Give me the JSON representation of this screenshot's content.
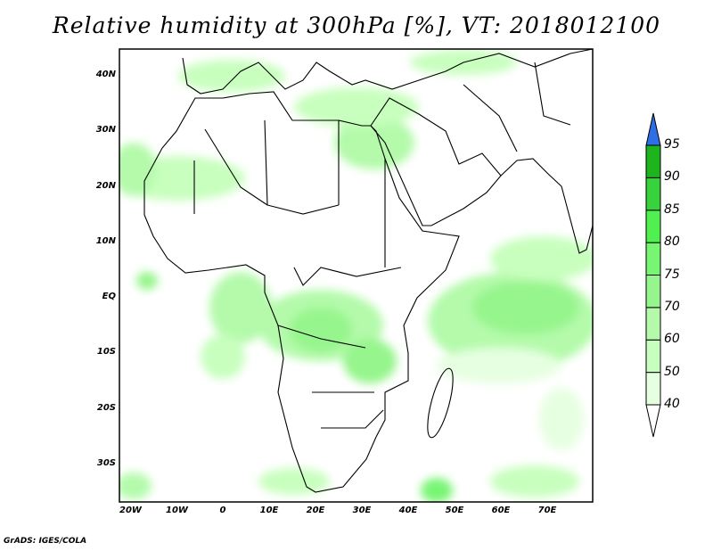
{
  "title": "Relative humidity at 300hPa [%], VT: 2018012100",
  "credit": "GrADS: IGES/COLA",
  "lat_labels": [
    "40N",
    "30N",
    "20N",
    "10N",
    "EQ",
    "10S",
    "20S",
    "30S"
  ],
  "lon_labels": [
    "20W",
    "10W",
    "0",
    "10E",
    "20E",
    "30E",
    "40E",
    "50E",
    "60E",
    "70E"
  ],
  "colorbar": {
    "levels": [
      "40",
      "50",
      "60",
      "70",
      "75",
      "80",
      "85",
      "90",
      "95"
    ],
    "colors": [
      "#e6ffe1",
      "#c8ffbe",
      "#b4faaa",
      "#96f58c",
      "#78f573",
      "#50f050",
      "#37d23c",
      "#1eb41e"
    ],
    "over_color": "#2f6fe6",
    "under_color": "#ffffff"
  }
}
